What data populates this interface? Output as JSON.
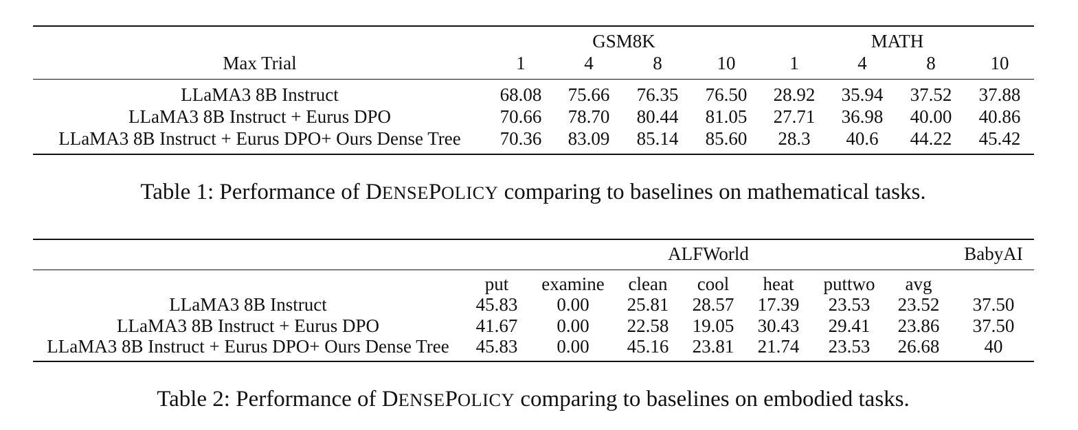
{
  "table1": {
    "groups": [
      "GSM8K",
      "MATH"
    ],
    "row_header": "Max Trial",
    "trials": [
      "1",
      "4",
      "8",
      "10",
      "1",
      "4",
      "8",
      "10"
    ],
    "rows": [
      {
        "name": "LLaMA3 8B Instruct",
        "values": [
          "68.08",
          "75.66",
          "76.35",
          "76.50",
          "28.92",
          "35.94",
          "37.52",
          "37.88"
        ]
      },
      {
        "name": "LLaMA3 8B Instruct + Eurus DPO",
        "values": [
          "70.66",
          "78.70",
          "80.44",
          "81.05",
          "27.71",
          "36.98",
          "40.00",
          "40.86"
        ]
      },
      {
        "name": "LLaMA3 8B Instruct + Eurus DPO+ Ours Dense Tree",
        "values": [
          "70.36",
          "83.09",
          "85.14",
          "85.60",
          "28.3",
          "40.6",
          "44.22",
          "45.42"
        ]
      }
    ],
    "caption": {
      "prefix": "Table 1: Performance of ",
      "d1": "D",
      "d2": "ENSE",
      "p1": "P",
      "p2": "OLICY",
      "suffix": " comparing to baselines on mathematical tasks."
    }
  },
  "table2": {
    "groups": [
      "ALFWorld",
      "BabyAI"
    ],
    "columns": [
      "put",
      "examine",
      "clean",
      "cool",
      "heat",
      "puttwo",
      "avg"
    ],
    "rows": [
      {
        "name": "LLaMA3 8B Instruct",
        "values": [
          "45.83",
          "0.00",
          "25.81",
          "28.57",
          "17.39",
          "23.53",
          "23.52",
          "37.50"
        ]
      },
      {
        "name": "LLaMA3 8B Instruct + Eurus DPO",
        "values": [
          "41.67",
          "0.00",
          "22.58",
          "19.05",
          "30.43",
          "29.41",
          "23.86",
          "37.50"
        ]
      },
      {
        "name": "LLaMA3 8B Instruct + Eurus DPO+ Ours Dense Tree",
        "values": [
          "45.83",
          "0.00",
          "45.16",
          "23.81",
          "21.74",
          "23.53",
          "26.68",
          "40"
        ]
      }
    ],
    "caption": {
      "prefix": "Table 2: Performance of ",
      "d1": "D",
      "d2": "ENSE",
      "p1": "P",
      "p2": "OLICY",
      "suffix": " comparing to baselines on embodied tasks."
    }
  }
}
